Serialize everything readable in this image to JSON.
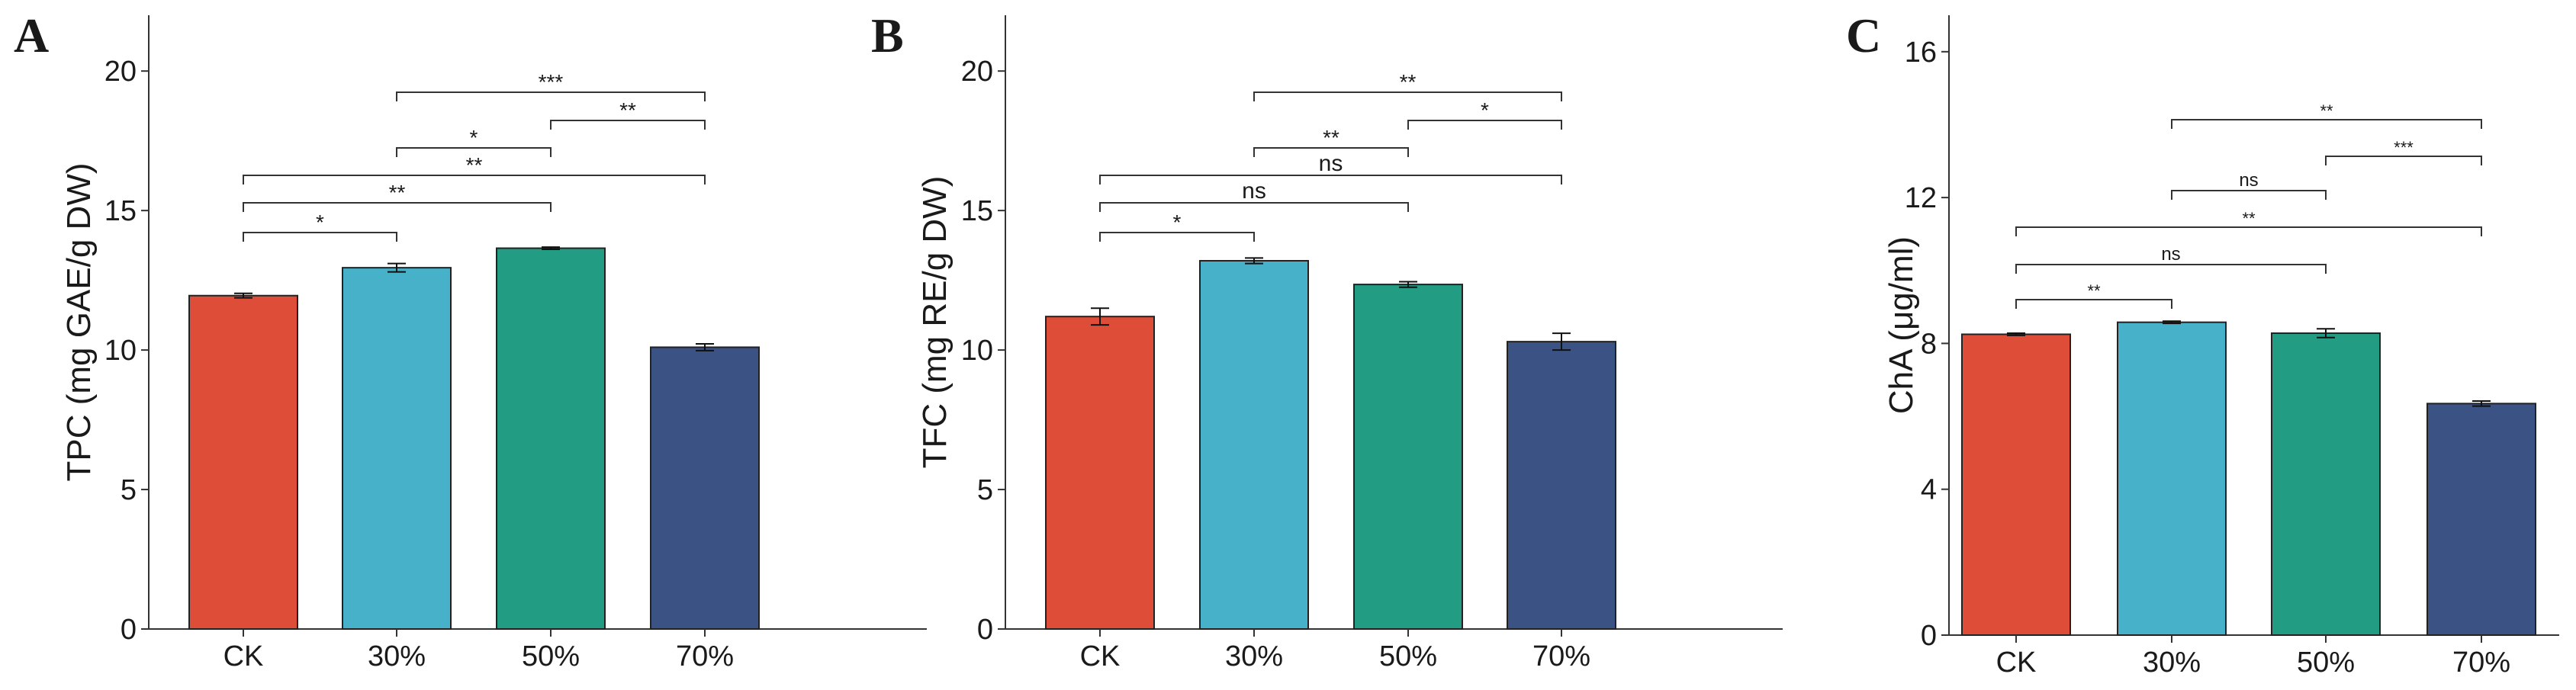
{
  "chart_data": [
    {
      "type": "bar",
      "panel": "A",
      "ylabel": "TPC (mg GAE/g DW)",
      "categories": [
        "CK",
        "30%",
        "50%",
        "70%"
      ],
      "values": [
        11.95,
        12.95,
        13.65,
        10.1
      ],
      "errors": [
        0.08,
        0.15,
        0.04,
        0.12
      ],
      "ylim": [
        0,
        22
      ],
      "yticks": [
        "0",
        "5",
        "10",
        "15",
        "20"
      ],
      "colors": [
        "#DE4D37",
        "#47B1CA",
        "#229C82",
        "#3B5285"
      ],
      "comparisons": [
        {
          "from": "CK",
          "to": "30%",
          "label": "*"
        },
        {
          "from": "CK",
          "to": "50%",
          "label": "**"
        },
        {
          "from": "CK",
          "to": "70%",
          "label": "**"
        },
        {
          "from": "30%",
          "to": "50%",
          "label": "*"
        },
        {
          "from": "50%",
          "to": "70%",
          "label": "**"
        },
        {
          "from": "30%",
          "to": "70%",
          "label": "***"
        }
      ]
    },
    {
      "type": "bar",
      "panel": "B",
      "ylabel": "TFC (mg RE/g DW)",
      "categories": [
        "CK",
        "30%",
        "50%",
        "70%"
      ],
      "values": [
        11.2,
        13.2,
        12.35,
        10.3
      ],
      "errors": [
        0.3,
        0.1,
        0.1,
        0.3
      ],
      "ylim": [
        0,
        22
      ],
      "yticks": [
        "0",
        "5",
        "10",
        "15",
        "20"
      ],
      "colors": [
        "#DE4D37",
        "#47B1CA",
        "#229C82",
        "#3B5285"
      ],
      "comparisons": [
        {
          "from": "CK",
          "to": "30%",
          "label": "*"
        },
        {
          "from": "CK",
          "to": "50%",
          "label": "ns"
        },
        {
          "from": "CK",
          "to": "70%",
          "label": "ns"
        },
        {
          "from": "30%",
          "to": "50%",
          "label": "**"
        },
        {
          "from": "50%",
          "to": "70%",
          "label": "*"
        },
        {
          "from": "30%",
          "to": "70%",
          "label": "**"
        }
      ]
    },
    {
      "type": "bar",
      "panel": "C",
      "ylabel": "ChA (μg/ml)",
      "categories": [
        "CK",
        "30%",
        "50%",
        "70%"
      ],
      "values": [
        8.25,
        8.58,
        8.28,
        6.35
      ],
      "errors": [
        0.03,
        0.03,
        0.12,
        0.07
      ],
      "ylim": [
        0,
        17
      ],
      "yticks": [
        "0",
        "4",
        "8",
        "12",
        "16"
      ],
      "colors": [
        "#DE4D37",
        "#47B1CA",
        "#229C82",
        "#3B5285"
      ],
      "comparisons": [
        {
          "from": "CK",
          "to": "30%",
          "label": "**"
        },
        {
          "from": "CK",
          "to": "50%",
          "label": "ns"
        },
        {
          "from": "CK",
          "to": "70%",
          "label": "**"
        },
        {
          "from": "30%",
          "to": "50%",
          "label": "ns"
        },
        {
          "from": "50%",
          "to": "70%",
          "label": "***"
        },
        {
          "from": "30%",
          "to": "70%",
          "label": "**"
        }
      ]
    }
  ]
}
